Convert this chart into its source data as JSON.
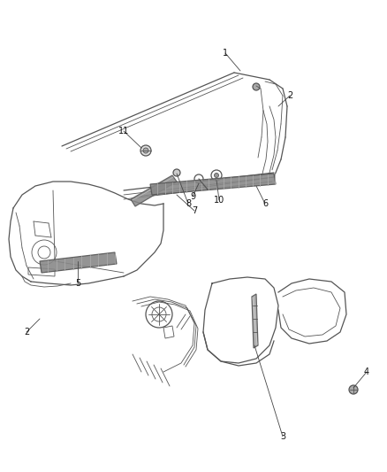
{
  "bg_color": "#ffffff",
  "line_color": "#555555",
  "label_color": "#222222",
  "fig_width": 4.39,
  "fig_height": 5.33,
  "dpi": 100,
  "lw_thin": 0.6,
  "lw_med": 0.9,
  "lw_thick": 1.3,
  "label_fs": 7.0
}
